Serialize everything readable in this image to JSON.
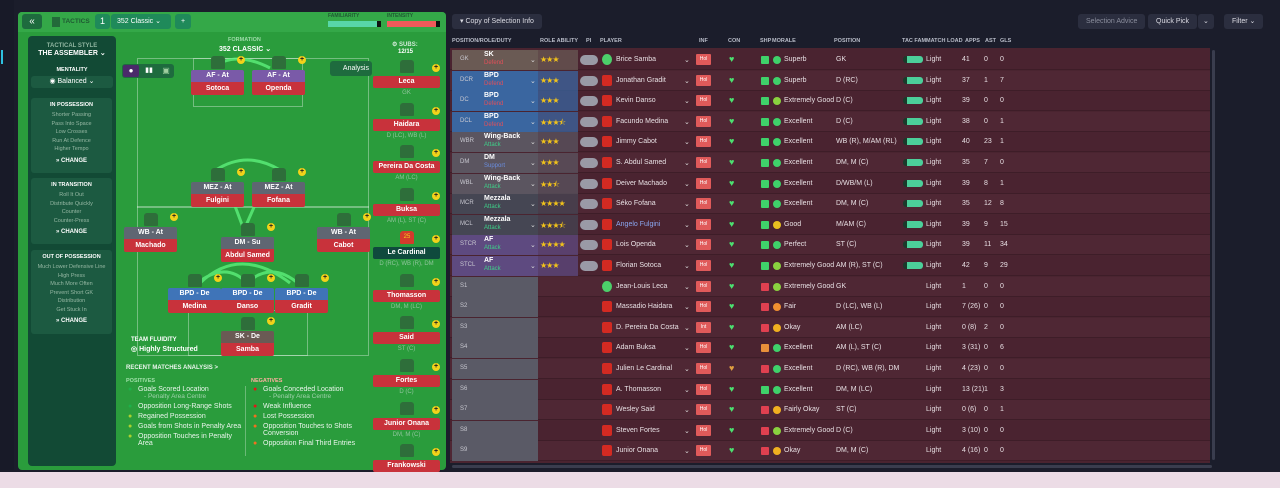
{
  "header": {
    "collapse": "«",
    "tactics_label": "TACTICS",
    "slot": "1",
    "tactic_name": "352 Classic",
    "add": "+",
    "familiarity_label": "FAMILIARITY",
    "intensity_label": "INTENSITY",
    "familiarity": 0.92,
    "intensity": 0.92
  },
  "side": {
    "style_label": "TACTICAL STYLE",
    "style": "THE ASSEMBLER",
    "mentality_label": "MENTALITY",
    "mentality": "Balanced",
    "in_possession": {
      "title": "IN POSSESSION",
      "items": [
        "Shorter Passing",
        "Pass Into Space",
        "Low Crosses",
        "Run At Defence",
        "Higher Tempo"
      ]
    },
    "in_transition": {
      "title": "IN TRANSITION",
      "items": [
        "Roll It Out",
        "Distribute Quickly",
        "Counter",
        "Counter-Press"
      ]
    },
    "out_possession": {
      "title": "OUT OF POSSESSION",
      "items": [
        "Much Lower Defensive Line",
        "High Press",
        "Much More Often",
        "Prevent Short GK",
        "Distribution",
        "Get Stuck In"
      ]
    },
    "change": "CHANGE"
  },
  "pitch": {
    "formation_label": "FORMATION",
    "formation": "352 CLASSIC",
    "analysis": "Analysis",
    "subs_label": "SUBS:",
    "subs": "12/15",
    "fluidity_label": "TEAM FLUIDITY",
    "fluidity": "Highly Structured",
    "players": [
      {
        "role": "AF - At",
        "name": "Sotoca",
        "c": "purple"
      },
      {
        "role": "AF - At",
        "name": "Openda",
        "c": "purple"
      },
      {
        "role": "MEZ - At",
        "name": "Fulgini",
        "c": "grey"
      },
      {
        "role": "MEZ - At",
        "name": "Fofana",
        "c": "grey"
      },
      {
        "role": "WB - At",
        "name": "Machado",
        "c": "grey"
      },
      {
        "role": "WB - At",
        "name": "Cabot",
        "c": "grey"
      },
      {
        "role": "DM - Su",
        "name": "Abdul Samed",
        "c": "grey"
      },
      {
        "role": "BPD - De",
        "name": "Medina",
        "c": "blue"
      },
      {
        "role": "BPD - De",
        "name": "Danso",
        "c": "blue"
      },
      {
        "role": "BPD - De",
        "name": "Gradit",
        "c": "blue"
      },
      {
        "role": "SK - De",
        "name": "Samba",
        "c": "brown"
      }
    ],
    "subs_list": [
      {
        "name": "Leca",
        "pos": "GK"
      },
      {
        "name": "Haidara",
        "pos": "D (LC), WB (L)"
      },
      {
        "name": "Pereira Da Costa",
        "pos": "AM (LC)"
      },
      {
        "name": "Buksa",
        "pos": "AM (L), ST (C)"
      },
      {
        "name": "Le Cardinal",
        "pos": "D (RC), WB (R), DM",
        "num": "25"
      },
      {
        "name": "Thomasson",
        "pos": "DM, M (LC)"
      },
      {
        "name": "Said",
        "pos": "ST (C)"
      },
      {
        "name": "Fortes",
        "pos": "D (C)"
      },
      {
        "name": "Junior Onana",
        "pos": "DM, M (C)"
      },
      {
        "name": "Frankowski",
        "pos": ""
      }
    ]
  },
  "analysis": {
    "title": "RECENT MATCHES ANALYSIS >",
    "pos_label": "POSITIVES",
    "neg_label": "NEGATIVES",
    "positives": [
      {
        "t": "Goals Scored Location",
        "s": "- Penalty Area Centre"
      },
      {
        "t": "Opposition Long-Range Shots"
      },
      {
        "t": "Regained Possession"
      },
      {
        "t": "Goals from Shots in Penalty Area"
      },
      {
        "t": "Opposition Touches in Penalty Area"
      }
    ],
    "negatives": [
      {
        "t": "Goals Conceded Location",
        "s": "- Penalty Area Centre"
      },
      {
        "t": "Weak Influence"
      },
      {
        "t": "Lost Possession"
      },
      {
        "t": "Opposition Touches to Shots Conversion"
      },
      {
        "t": "Opposition Final Third Entries"
      }
    ]
  },
  "toolbar": {
    "copy": "Copy of Selection Info",
    "advice": "Selection Advice",
    "quick_pick": "Quick Pick",
    "filter": "Filter"
  },
  "columns": [
    "POSITION/ROLE/DUTY",
    "ROLE ABILITY",
    "PI",
    "PLAYER",
    "INF",
    "CON",
    "SHP",
    "MORALE",
    "POSITION",
    "TAC FAM",
    "MATCH LOAD",
    "APPS",
    "AST",
    "GLS"
  ],
  "rows": [
    {
      "pos": "GK",
      "role": "SK",
      "duty": "Defend",
      "stars": 3,
      "name": "Brice Samba",
      "inf": "Hol",
      "morale": "Superb",
      "position": "GK",
      "load": "Light",
      "apps": "41",
      "ast": "0",
      "gls": "0"
    },
    {
      "pos": "DCR",
      "role": "BPD",
      "duty": "Defend",
      "stars": 3,
      "name": "Jonathan Gradit",
      "inf": "Hol",
      "morale": "Superb",
      "position": "D (RC)",
      "load": "Light",
      "apps": "37",
      "ast": "1",
      "gls": "7"
    },
    {
      "pos": "DC",
      "role": "BPD",
      "duty": "Defend",
      "stars": 3,
      "name": "Kevin Danso",
      "inf": "Hol",
      "morale": "Extremely Good",
      "position": "D (C)",
      "load": "Light",
      "apps": "39",
      "ast": "0",
      "gls": "0"
    },
    {
      "pos": "DCL",
      "role": "BPD",
      "duty": "Defend",
      "stars": 3.5,
      "name": "Facundo Medina",
      "inf": "Hol",
      "morale": "Excellent",
      "position": "D (C)",
      "load": "Light",
      "apps": "38",
      "ast": "0",
      "gls": "1"
    },
    {
      "pos": "WBR",
      "role": "Wing-Back",
      "duty": "Attack",
      "stars": 3,
      "name": "Jimmy Cabot",
      "inf": "Hol",
      "morale": "Excellent",
      "position": "WB (R), M/AM (RL)",
      "load": "Light",
      "apps": "40",
      "ast": "23",
      "gls": "1"
    },
    {
      "pos": "DM",
      "role": "DM",
      "duty": "Support",
      "stars": 3,
      "name": "S. Abdul Samed",
      "inf": "Hol",
      "morale": "Excellent",
      "position": "DM, M (C)",
      "load": "Light",
      "apps": "35",
      "ast": "7",
      "gls": "0"
    },
    {
      "pos": "WBL",
      "role": "Wing-Back",
      "duty": "Attack",
      "stars": 2.5,
      "name": "Deiver Machado",
      "inf": "Hol",
      "morale": "Excellent",
      "position": "D/WB/M (L)",
      "load": "Light",
      "apps": "39",
      "ast": "8",
      "gls": "1"
    },
    {
      "pos": "MCR",
      "role": "Mezzala",
      "duty": "Attack",
      "stars": 4,
      "name": "Séko Fofana",
      "inf": "Hol",
      "morale": "Excellent",
      "position": "DM, M (C)",
      "load": "Light",
      "apps": "35",
      "ast": "12",
      "gls": "8"
    },
    {
      "pos": "MCL",
      "role": "Mezzala",
      "duty": "Attack",
      "stars": 3.5,
      "name": "Angelo Fulgini",
      "inf": "Hol",
      "morale": "Good",
      "position": "M/AM (C)",
      "load": "Light",
      "apps": "39",
      "ast": "9",
      "gls": "15"
    },
    {
      "pos": "STCR",
      "role": "AF",
      "duty": "Attack",
      "stars": 4,
      "name": "Lois Openda",
      "inf": "Hol",
      "morale": "Perfect",
      "position": "ST (C)",
      "load": "Light",
      "apps": "39",
      "ast": "11",
      "gls": "34"
    },
    {
      "pos": "STCL",
      "role": "AF",
      "duty": "Attack",
      "stars": 3,
      "name": "Florian Sotoca",
      "inf": "Hol",
      "morale": "Extremely Good",
      "position": "AM (R), ST (C)",
      "load": "Light",
      "apps": "42",
      "ast": "9",
      "gls": "29"
    },
    {
      "pos": "S1",
      "name": "Jean-Louis Leca",
      "inf": "Hol",
      "morale": "Extremely Good",
      "position": "GK",
      "load": "Light",
      "apps": "1",
      "ast": "0",
      "gls": "0"
    },
    {
      "pos": "S2",
      "name": "Massadio Haidara",
      "inf": "Hol",
      "morale": "Fair",
      "position": "D (LC), WB (L)",
      "load": "Light",
      "apps": "7 (26)",
      "ast": "0",
      "gls": "0"
    },
    {
      "pos": "S3",
      "name": "D. Pereira Da Costa",
      "inf": "Int",
      "morale": "Okay",
      "position": "AM (LC)",
      "load": "Light",
      "apps": "0 (8)",
      "ast": "2",
      "gls": "0"
    },
    {
      "pos": "S4",
      "name": "Adam Buksa",
      "inf": "Hol",
      "morale": "Excellent",
      "position": "AM (L), ST (C)",
      "load": "Light",
      "apps": "3 (31)",
      "ast": "0",
      "gls": "6"
    },
    {
      "pos": "S5",
      "name": "Julien Le Cardinal",
      "inf": "Hol",
      "morale": "Excellent",
      "position": "D (RC), WB (R), DM",
      "load": "Light",
      "apps": "4 (23)",
      "ast": "0",
      "gls": "0"
    },
    {
      "pos": "S6",
      "name": "A. Thomasson",
      "inf": "Hol",
      "morale": "Excellent",
      "position": "DM, M (LC)",
      "load": "Light",
      "apps": "13 (21)",
      "ast": "1",
      "gls": "3"
    },
    {
      "pos": "S7",
      "name": "Wesley Said",
      "inf": "Hol",
      "morale": "Fairly Okay",
      "position": "ST (C)",
      "load": "Light",
      "apps": "0 (6)",
      "ast": "0",
      "gls": "1"
    },
    {
      "pos": "S8",
      "name": "Steven Fortes",
      "inf": "Hol",
      "morale": "Extremely Good",
      "position": "D (C)",
      "load": "Light",
      "apps": "3 (10)",
      "ast": "0",
      "gls": "0"
    },
    {
      "pos": "S9",
      "name": "Junior Onana",
      "inf": "Hol",
      "morale": "Okay",
      "position": "DM, M (C)",
      "load": "Light",
      "apps": "4 (16)",
      "ast": "0",
      "gls": "0"
    }
  ],
  "colors": {
    "pitch": "#2a9c3c",
    "row": "#4a2330",
    "accent": "#2ec1e0"
  }
}
